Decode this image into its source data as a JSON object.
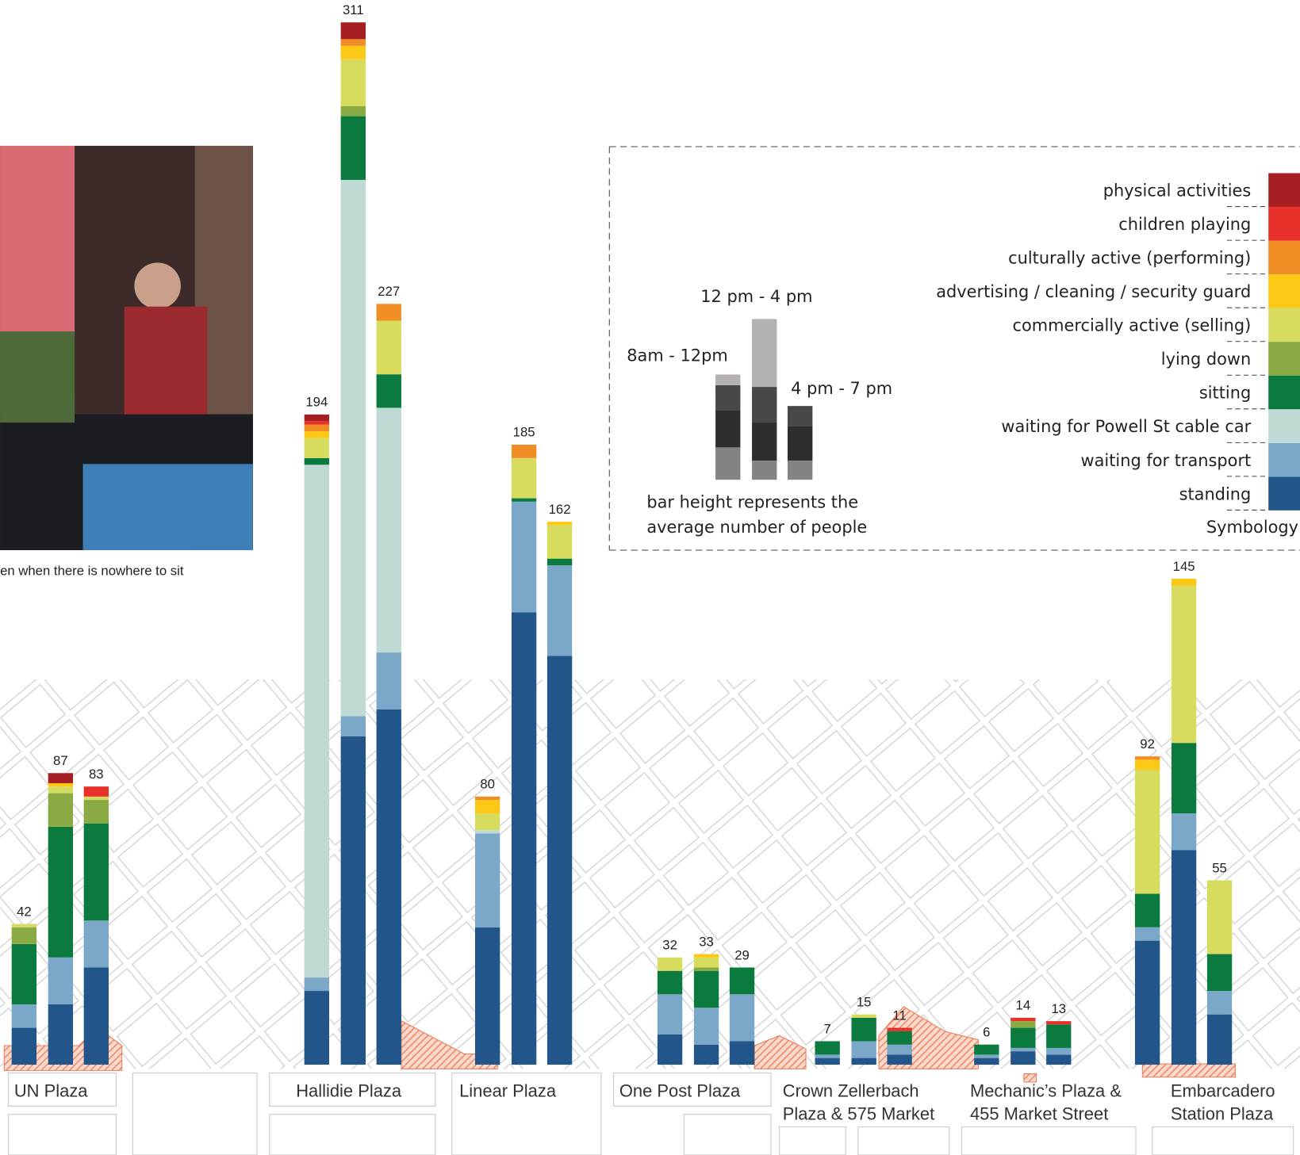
{
  "caption": "en when there is nowhere to sit",
  "chart_data": {
    "type": "stacked-bar",
    "categories": [
      [
        "UN Plaza"
      ],
      [
        "Hallidie Plaza"
      ],
      [
        "Linear Plaza"
      ],
      [
        "One Post Plaza"
      ],
      [
        "Crown Zellerbach",
        "Plaza & 575 Market"
      ],
      [
        "Mechanic’s Plaza &",
        "455 Market Street"
      ],
      [
        "Embarcadero",
        "Station Plaza"
      ]
    ],
    "periods": [
      "8am - 12pm",
      "12 pm - 4 pm",
      "4 pm - 7 pm"
    ],
    "series": [
      {
        "name": "standing",
        "color": "#22558a",
        "values": [
          [
            11,
            18,
            29
          ],
          [
            22,
            98,
            106
          ],
          [
            41,
            135,
            122
          ],
          [
            9,
            6,
            7
          ],
          [
            2,
            2,
            3
          ],
          [
            2,
            4,
            3
          ],
          [
            37,
            64,
            15
          ]
        ]
      },
      {
        "name": "waiting for transport",
        "color": "#7ba7c8",
        "values": [
          [
            7,
            14,
            14
          ],
          [
            4,
            6,
            17
          ],
          [
            28,
            33,
            27
          ],
          [
            12,
            11,
            14
          ],
          [
            1,
            5,
            3
          ],
          [
            1,
            1,
            2
          ],
          [
            4,
            11,
            7
          ]
        ]
      },
      {
        "name": "waiting for Powell St cable car",
        "color": "#bfdad5",
        "values": [
          [
            0,
            0,
            0
          ],
          [
            153,
            160,
            73
          ],
          [
            1,
            0,
            0
          ],
          [
            0,
            0,
            0
          ],
          [
            0,
            0,
            0
          ],
          [
            0,
            0,
            0
          ],
          [
            0,
            0,
            0
          ]
        ]
      },
      {
        "name": "sitting",
        "color": "#0b7a3e",
        "values": [
          [
            18,
            39,
            29
          ],
          [
            2,
            19,
            10
          ],
          [
            0,
            1,
            2
          ],
          [
            7,
            11,
            8
          ],
          [
            4,
            7,
            4
          ],
          [
            3,
            6,
            7
          ],
          [
            10,
            21,
            11
          ]
        ]
      },
      {
        "name": "lying down",
        "color": "#8aab44",
        "values": [
          [
            5,
            10,
            7
          ],
          [
            0,
            3,
            0
          ],
          [
            0,
            0,
            0
          ],
          [
            0,
            1,
            0
          ],
          [
            0,
            0,
            0
          ],
          [
            0,
            2,
            0
          ],
          [
            0,
            0,
            0
          ]
        ]
      },
      {
        "name": "commercially active (selling)",
        "color": "#d7dc5e",
        "values": [
          [
            1,
            2,
            1
          ],
          [
            6,
            14,
            16
          ],
          [
            5,
            12,
            10
          ],
          [
            4,
            3,
            0
          ],
          [
            0,
            1,
            0
          ],
          [
            0,
            0,
            0
          ],
          [
            37,
            47,
            22
          ]
        ]
      },
      {
        "name": "advertising / cleaning / security guard",
        "color": "#fcc815",
        "values": [
          [
            0,
            1,
            0
          ],
          [
            2,
            4,
            0
          ],
          [
            4,
            0,
            1
          ],
          [
            0,
            1,
            0
          ],
          [
            0,
            0,
            0
          ],
          [
            0,
            0,
            0
          ],
          [
            3,
            2,
            0
          ]
        ]
      },
      {
        "name": "culturally active (performing)",
        "color": "#f08d24",
        "values": [
          [
            0,
            0,
            0
          ],
          [
            2,
            2,
            5
          ],
          [
            1,
            4,
            0
          ],
          [
            0,
            0,
            0
          ],
          [
            0,
            0,
            0
          ],
          [
            0,
            0,
            0
          ],
          [
            1,
            0,
            0
          ]
        ]
      },
      {
        "name": "children playing",
        "color": "#e8312b",
        "values": [
          [
            0,
            0,
            3
          ],
          [
            1,
            0,
            0
          ],
          [
            0,
            0,
            0
          ],
          [
            0,
            0,
            0
          ],
          [
            0,
            0,
            1
          ],
          [
            0,
            1,
            1
          ],
          [
            0,
            0,
            0
          ]
        ]
      },
      {
        "name": "physical activities",
        "color": "#a71f23",
        "values": [
          [
            0,
            3,
            0
          ],
          [
            2,
            5,
            0
          ],
          [
            0,
            0,
            0
          ],
          [
            0,
            0,
            0
          ],
          [
            0,
            0,
            0
          ],
          [
            0,
            0,
            0
          ],
          [
            0,
            0,
            0
          ]
        ]
      }
    ],
    "totals": [
      [
        42,
        87,
        83
      ],
      [
        194,
        311,
        227
      ],
      [
        80,
        185,
        162
      ],
      [
        32,
        33,
        29
      ],
      [
        7,
        15,
        11
      ],
      [
        6,
        14,
        13
      ],
      [
        92,
        145,
        55
      ]
    ],
    "legend_title": "Symbology",
    "note": [
      "bar height represents the",
      "average number of people"
    ]
  }
}
